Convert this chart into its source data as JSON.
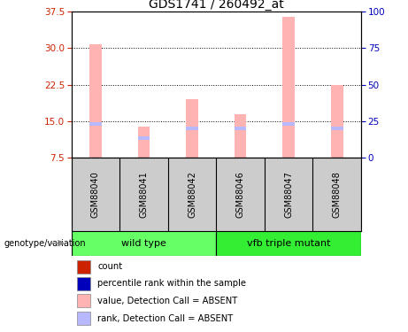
{
  "title": "GDS1741 / 260492_at",
  "samples": [
    "GSM88040",
    "GSM88041",
    "GSM88042",
    "GSM88046",
    "GSM88047",
    "GSM88048"
  ],
  "bar_values": [
    30.8,
    13.8,
    19.5,
    16.5,
    36.5,
    22.5
  ],
  "rank_values": [
    14.5,
    11.5,
    13.5,
    13.5,
    14.5,
    13.5
  ],
  "bar_color_absent": "#ffb3b3",
  "rank_color_absent": "#b8b8ff",
  "ylim_left": [
    7.5,
    37.5
  ],
  "ylim_right": [
    0,
    100
  ],
  "yticks_left": [
    7.5,
    15.0,
    22.5,
    30.0,
    37.5
  ],
  "yticks_right": [
    0,
    25,
    50,
    75,
    100
  ],
  "left_axis_color": "#cc2200",
  "right_axis_color": "#0000bb",
  "sample_bg_color": "#cccccc",
  "group_color_1": "#66ff66",
  "group_color_2": "#33ee33",
  "group1_name": "wild type",
  "group2_name": "vfb triple mutant",
  "bar_width": 0.25,
  "rank_bar_height": 0.7,
  "legend_items": [
    {
      "color": "#cc2200",
      "label": "count"
    },
    {
      "color": "#0000bb",
      "label": "percentile rank within the sample"
    },
    {
      "color": "#ffb3b3",
      "label": "value, Detection Call = ABSENT"
    },
    {
      "color": "#b8b8ff",
      "label": "rank, Detection Call = ABSENT"
    }
  ]
}
